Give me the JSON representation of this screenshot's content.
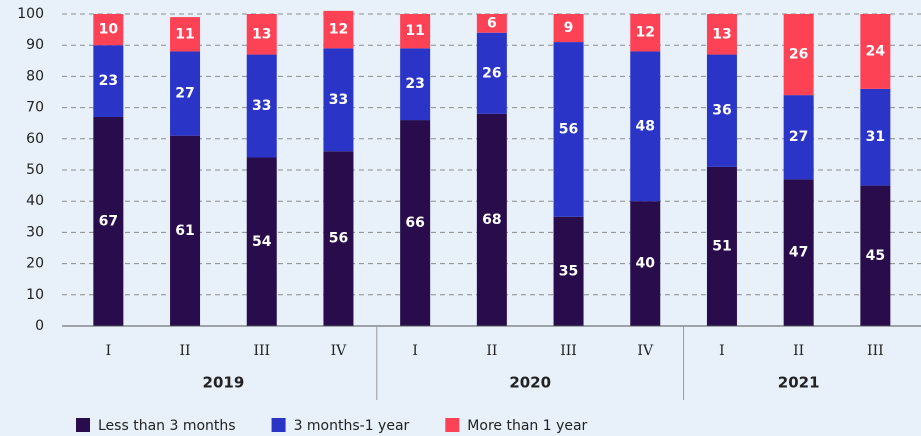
{
  "chart_data": {
    "type": "stacked_bar",
    "groups": [
      {
        "name": "2019",
        "categories": [
          "I",
          "II",
          "III",
          "IV"
        ]
      },
      {
        "name": "2020",
        "categories": [
          "I",
          "II",
          "III",
          "IV"
        ]
      },
      {
        "name": "2021",
        "categories": [
          "I",
          "II",
          "III"
        ]
      }
    ],
    "series": [
      {
        "name": "Less than 3 months",
        "color": "#280c4c",
        "values": [
          67,
          61,
          54,
          56,
          66,
          68,
          35,
          40,
          51,
          47,
          45
        ]
      },
      {
        "name": "3 months-1 year",
        "color": "#2a34c6",
        "values": [
          23,
          27,
          33,
          33,
          23,
          26,
          56,
          48,
          36,
          27,
          31
        ]
      },
      {
        "name": "More than 1 year",
        "color": "#fe4255",
        "values": [
          10,
          11,
          13,
          12,
          11,
          6,
          9,
          12,
          13,
          26,
          24
        ]
      }
    ],
    "ylim": [
      0,
      100
    ],
    "yticks": [
      0,
      10,
      20,
      30,
      40,
      50,
      60,
      70,
      80,
      90,
      100
    ],
    "grid": true
  }
}
